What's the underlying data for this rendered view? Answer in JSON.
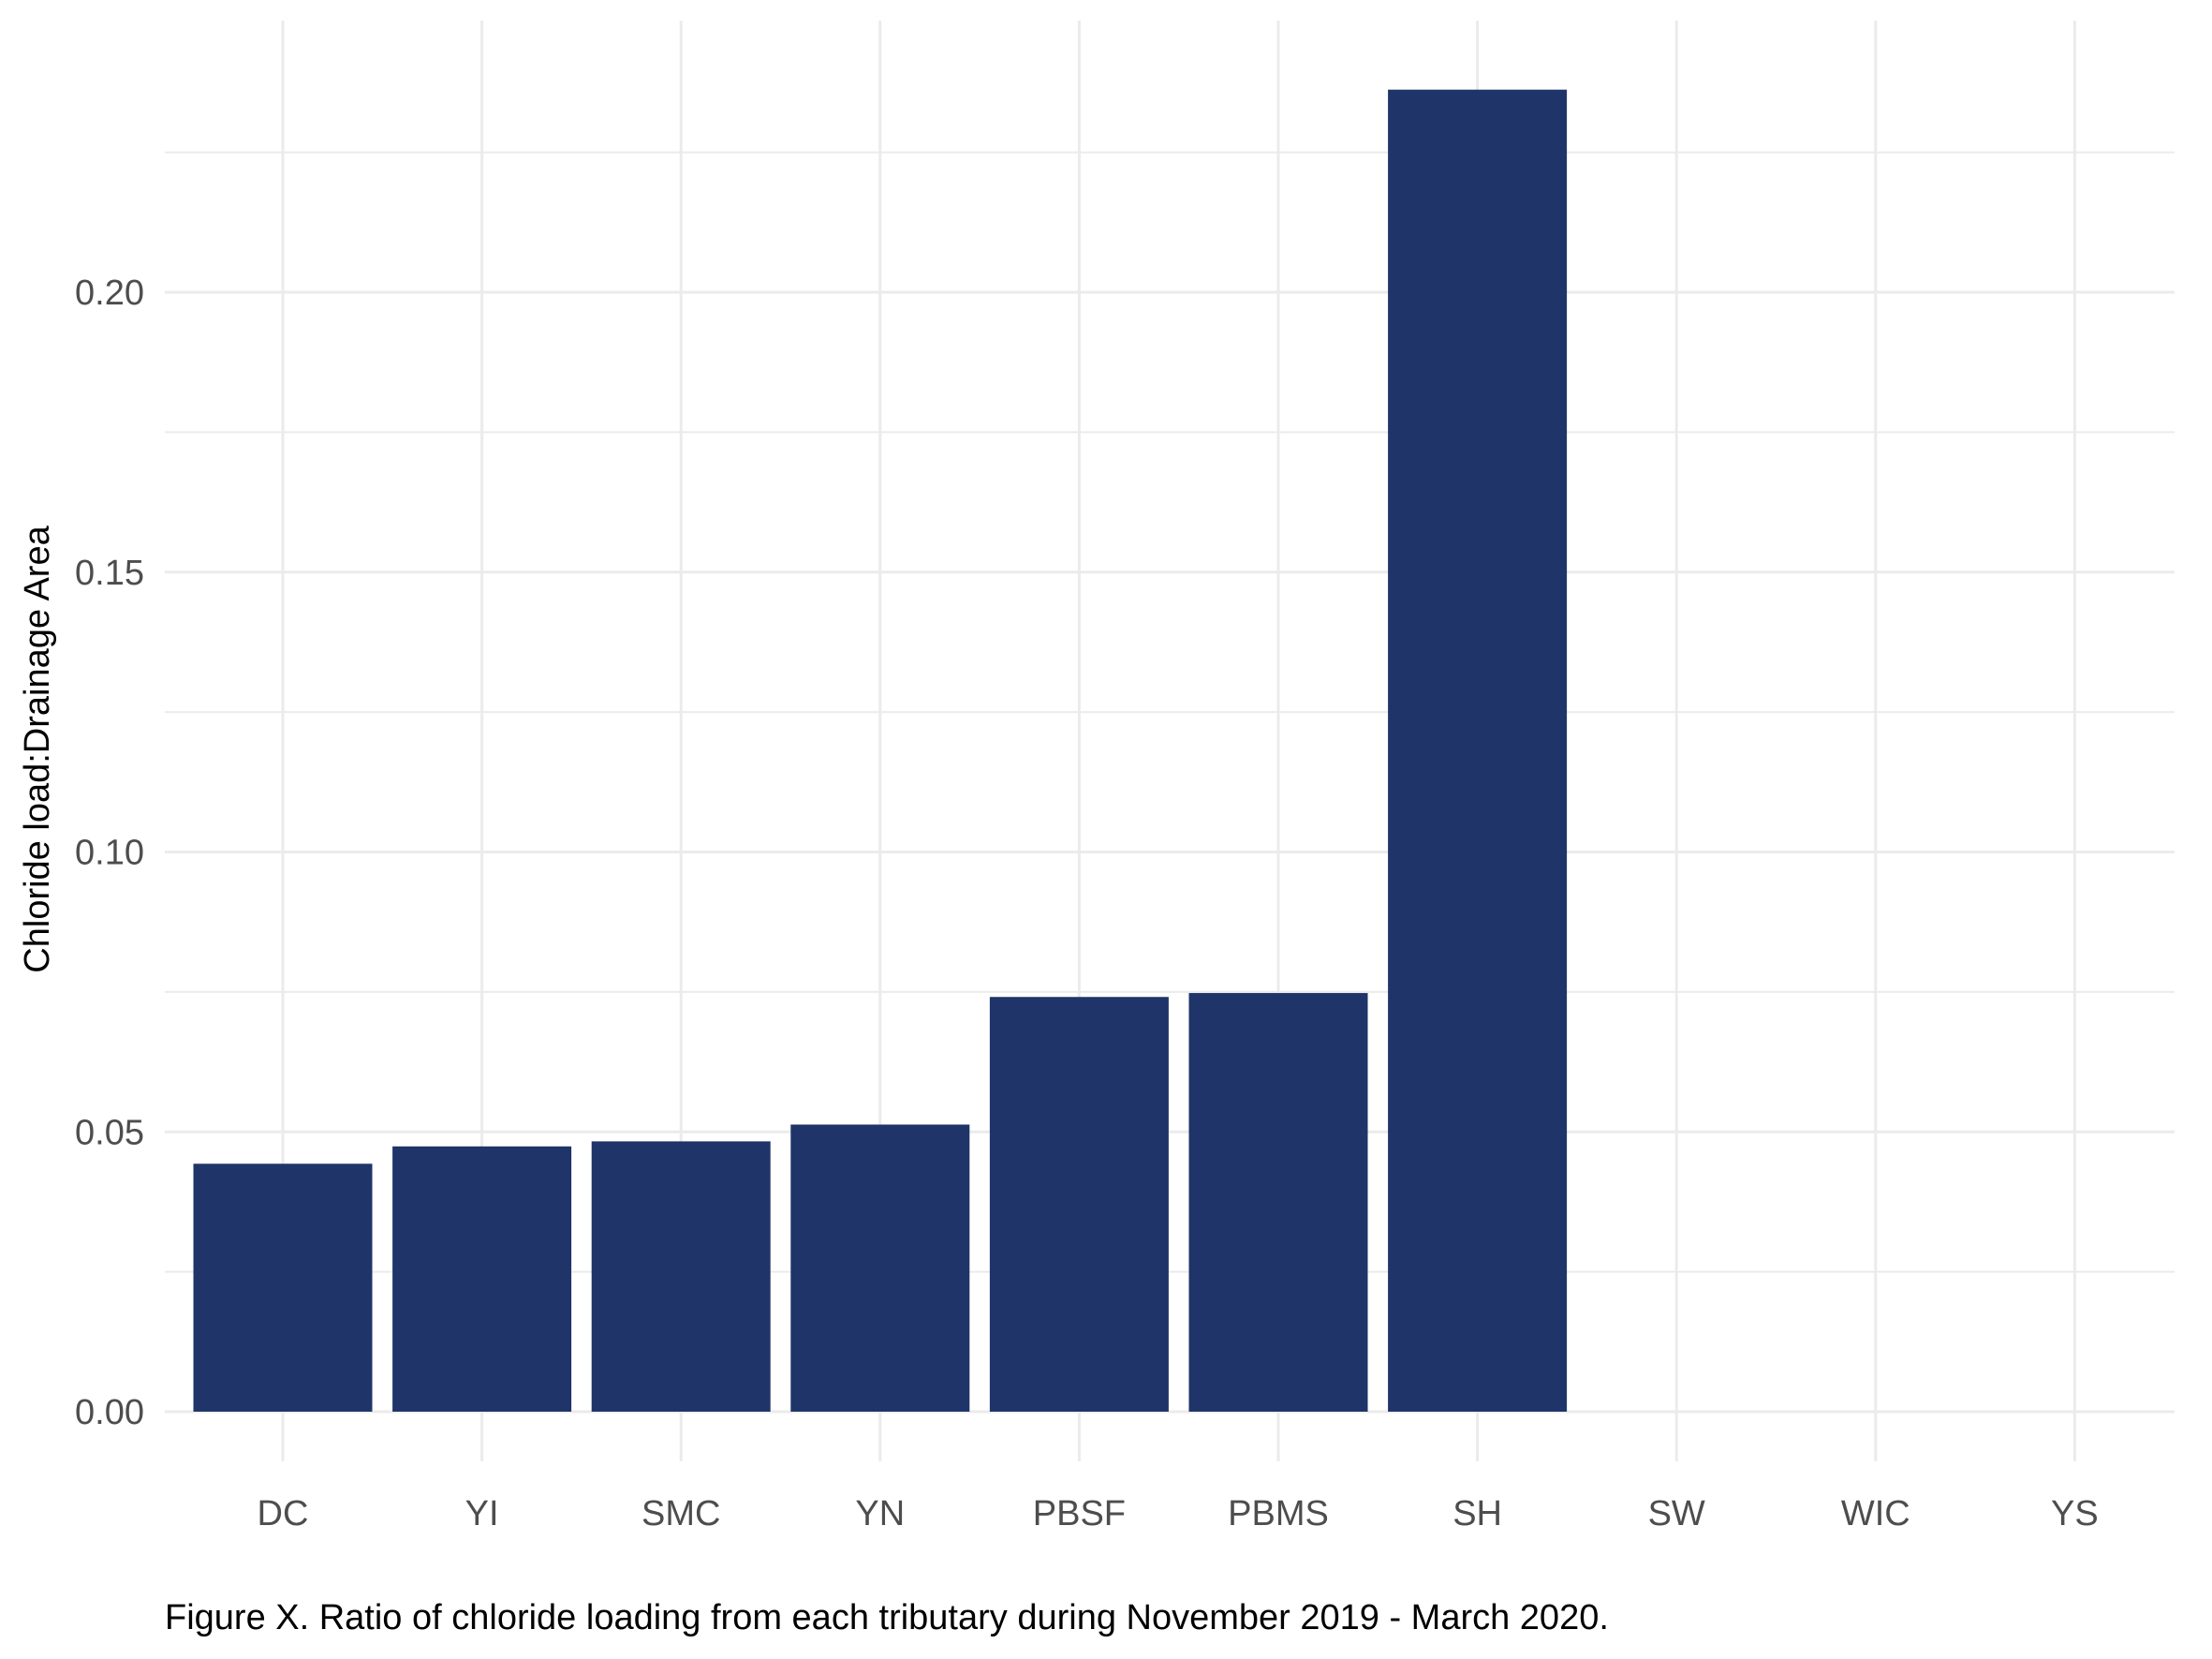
{
  "chart_data": {
    "type": "bar",
    "categories": [
      "DC",
      "YI",
      "SMC",
      "YN",
      "PBSF",
      "PBMS",
      "SH",
      "SW",
      "WIC",
      "YS"
    ],
    "values": [
      0.0443,
      0.0474,
      0.0483,
      0.0513,
      0.0741,
      0.0748,
      0.2362,
      null,
      null,
      null
    ],
    "yticks": [
      "0.00",
      "0.05",
      "0.10",
      "0.15",
      "0.20"
    ],
    "ylim": [
      0,
      0.25
    ],
    "xlabel": "",
    "ylabel": "Chloride load:Drainage Area",
    "grid": true,
    "bar_color": "#1f3569",
    "grid_color": "#ebebeb",
    "caption": "Figure X. Ratio of chloride loading from each tributary during November 2019 - March 2020."
  }
}
